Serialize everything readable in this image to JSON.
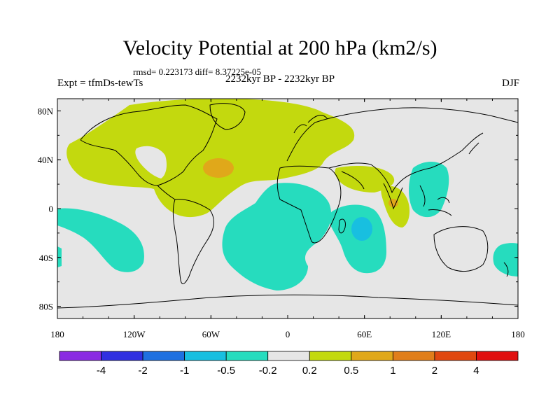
{
  "title": "Velocity Potential at 200 hPa (km2/s)",
  "stats": "rmsd= 0.223173  diff= 8.37225e-05",
  "subtitle": "2232kyr BP - 2232kyr BP",
  "experiment": "Expt = tfmDs-tewTs",
  "season": "DJF",
  "colors": {
    "background": "#e6e6e6",
    "positive_02_05": "#c3d90e",
    "positive_05_1": "#e0a81a",
    "negative_05_02": "#26dcbe",
    "negative_1_05": "#18bfe0",
    "coastline": "#000000"
  },
  "map": {
    "lon_range": [
      -180,
      180
    ],
    "lat_range": [
      -90,
      90
    ],
    "x_ticks": [
      "180",
      "120W",
      "60W",
      "0",
      "60E",
      "120E",
      "180"
    ],
    "y_ticks": [
      "80N",
      "40N",
      "0",
      "40S",
      "80S"
    ]
  },
  "colorbar": {
    "colors": [
      "#8a2be2",
      "#3030e0",
      "#1e70e0",
      "#18bfe0",
      "#26dcbe",
      "#e6e6e6",
      "#c3d90e",
      "#e0a81a",
      "#e07e1a",
      "#e04810",
      "#e01010"
    ],
    "labels": [
      "-4",
      "-2",
      "-1",
      "-0.5",
      "-0.2",
      "0.2",
      "0.5",
      "1",
      "2",
      "4"
    ]
  }
}
